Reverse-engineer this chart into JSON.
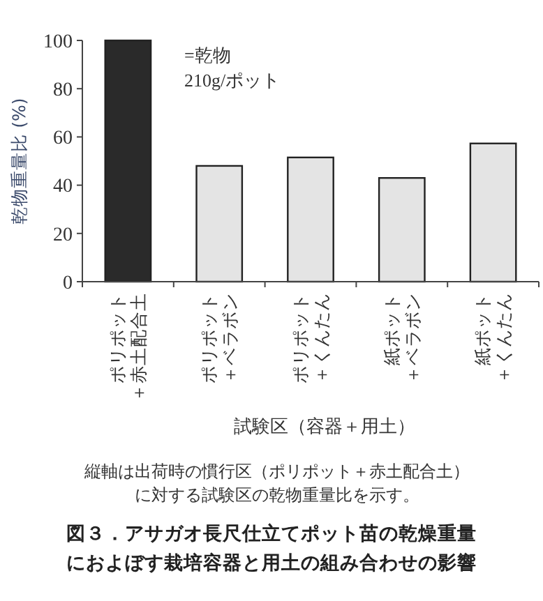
{
  "chart_data": {
    "type": "bar",
    "title": "図３．アサガオ長尺仕立てポット苗の乾燥重量におよぼす栽培容器と用土の組み合わせの影響",
    "xlabel": "試験区（容器＋用土）",
    "ylabel": "乾物重量比 (%)",
    "categories": [
      "ポリポット＋赤土配合土",
      "ポリポット＋ベラボン",
      "ポリポット＋くんたん",
      "紙ポット＋ベラボン",
      "紙ポット＋くんたん"
    ],
    "values": [
      100,
      48,
      51.5,
      43,
      57.3
    ],
    "colors": [
      "#2a2a2a",
      "#e4e4e4",
      "#e4e4e4",
      "#e4e4e4",
      "#e4e4e4"
    ],
    "ylim": [
      0,
      100
    ],
    "yticks": [
      0,
      20,
      40,
      60,
      80,
      100
    ],
    "grid": false,
    "annotations": [
      "=乾物210g/ポット",
      "縦軸は出荷時の慣行区（ポリポット＋赤土配合土）に対する試験区の乾物重量比を示す。"
    ]
  }
}
